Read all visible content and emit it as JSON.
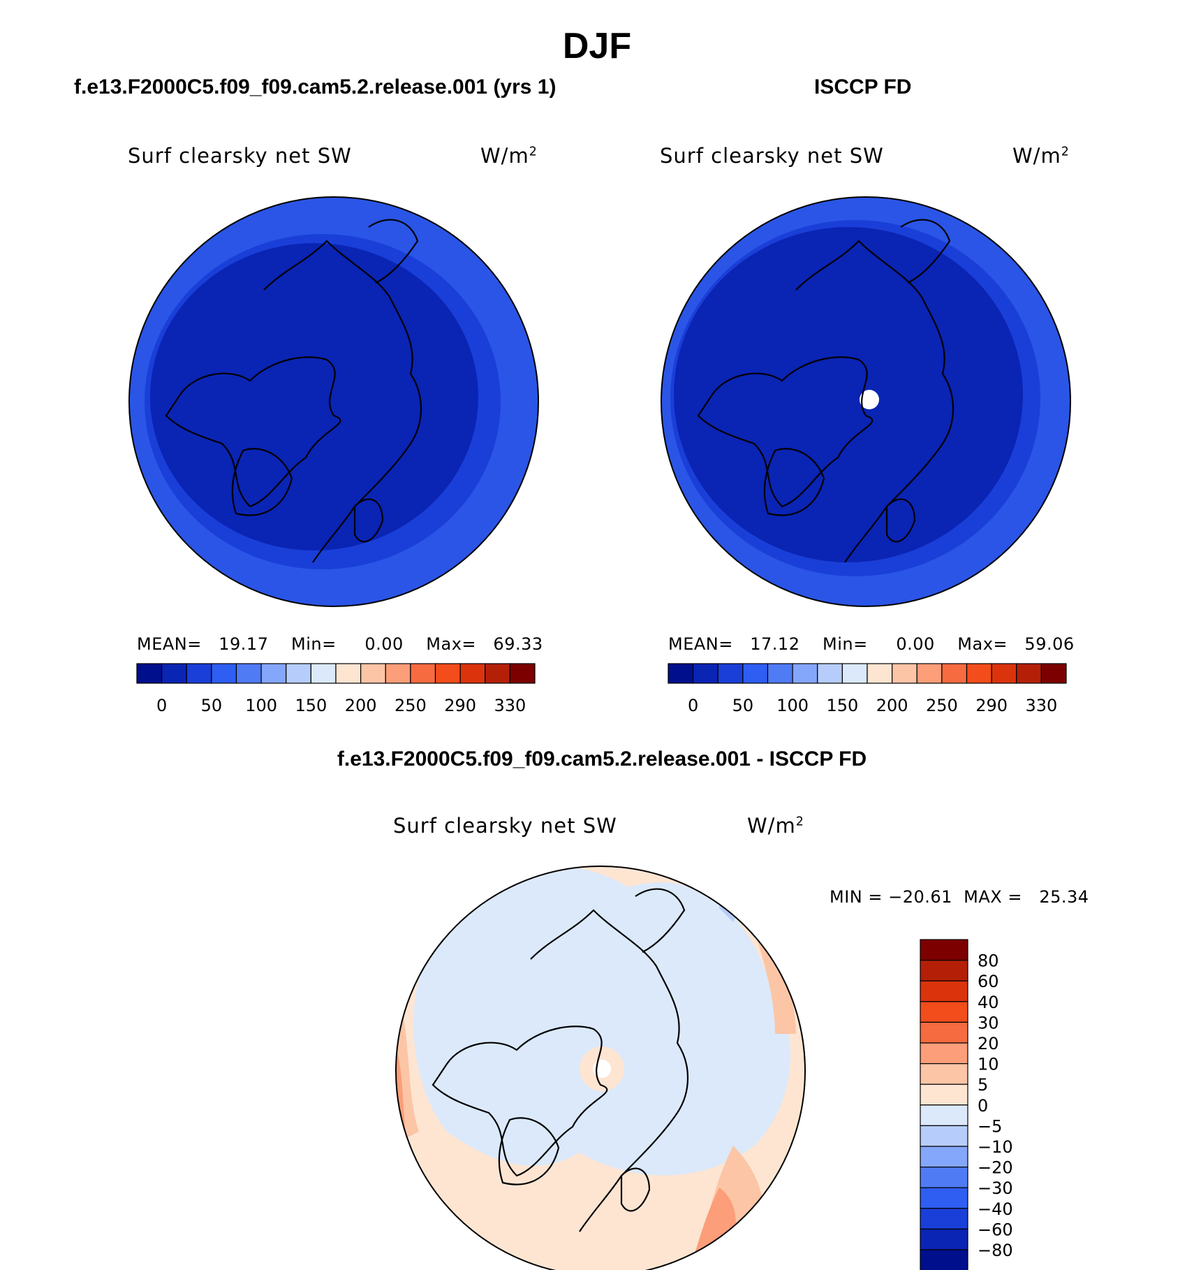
{
  "page_title": "DJF",
  "panels": [
    {
      "title": "f.e13.F2000C5.f09_f09.cam5.2.release.001 (yrs 1)",
      "variable": "Surf clearsky net SW",
      "units": "W/m",
      "units_exp": "2",
      "stats": {
        "mean_label": "MEAN=",
        "mean": "19.17",
        "min_label": "Min=",
        "min": "0.00",
        "max_label": "Max=",
        "max": "69.33"
      }
    },
    {
      "title": "ISCCP FD",
      "variable": "Surf clearsky net SW",
      "units": "W/m",
      "units_exp": "2",
      "stats": {
        "mean_label": "MEAN=",
        "mean": "17.12",
        "min_label": "Min=",
        "min": "0.00",
        "max_label": "Max=",
        "max": "59.06"
      }
    },
    {
      "title": "f.e13.F2000C5.f09_f09.cam5.2.release.001 - ISCCP FD",
      "variable": "Surf clearsky net SW",
      "units": "W/m",
      "units_exp": "2",
      "stats": {
        "text": "MIN = −20.61  MAX =   25.34"
      }
    }
  ],
  "colors": {
    "abs_scale": [
      "#000f8c",
      "#0a24b4",
      "#1a3fd8",
      "#2e5ef2",
      "#4f7bf5",
      "#84a6fb",
      "#b6cdfb",
      "#dbe9fb",
      "#fde5d2",
      "#fcc5a6",
      "#fb9e79",
      "#f76b40",
      "#f34d1b",
      "#db340d",
      "#b42007",
      "#7d0000"
    ],
    "diff_scale": [
      "#000f8c",
      "#0a24b4",
      "#1a3fd8",
      "#2e5ef2",
      "#4f7bf5",
      "#84a6fb",
      "#b6cdfb",
      "#dbe9fb",
      "#fde5d2",
      "#fcc5a6",
      "#fb9e79",
      "#f76b40",
      "#f34d1b",
      "#db340d",
      "#b42007",
      "#7d0000"
    ]
  },
  "chart_data": [
    {
      "type": "heatmap",
      "map": "north polar stereographic",
      "title": "Surf clearsky net SW",
      "units": "W/m2",
      "colorbar": {
        "orientation": "horizontal",
        "levels": [
          "0",
          "50",
          "100",
          "150",
          "200",
          "250",
          "290",
          "330"
        ]
      },
      "mean": 19.17,
      "min": 0.0,
      "max": 69.33
    },
    {
      "type": "heatmap",
      "map": "north polar stereographic",
      "title": "Surf clearsky net SW",
      "units": "W/m2",
      "colorbar": {
        "orientation": "horizontal",
        "levels": [
          "0",
          "50",
          "100",
          "150",
          "200",
          "250",
          "290",
          "330"
        ]
      },
      "mean": 17.12,
      "min": 0.0,
      "max": 59.06
    },
    {
      "type": "heatmap",
      "map": "north polar stereographic",
      "title": "Surf clearsky net SW",
      "units": "W/m2",
      "colorbar": {
        "orientation": "vertical",
        "levels": [
          "80",
          "60",
          "40",
          "30",
          "20",
          "10",
          "5",
          "0",
          "−5",
          "−10",
          "−20",
          "−30",
          "−40",
          "−60",
          "−80"
        ]
      },
      "min": -20.61,
      "max": 25.34
    }
  ]
}
